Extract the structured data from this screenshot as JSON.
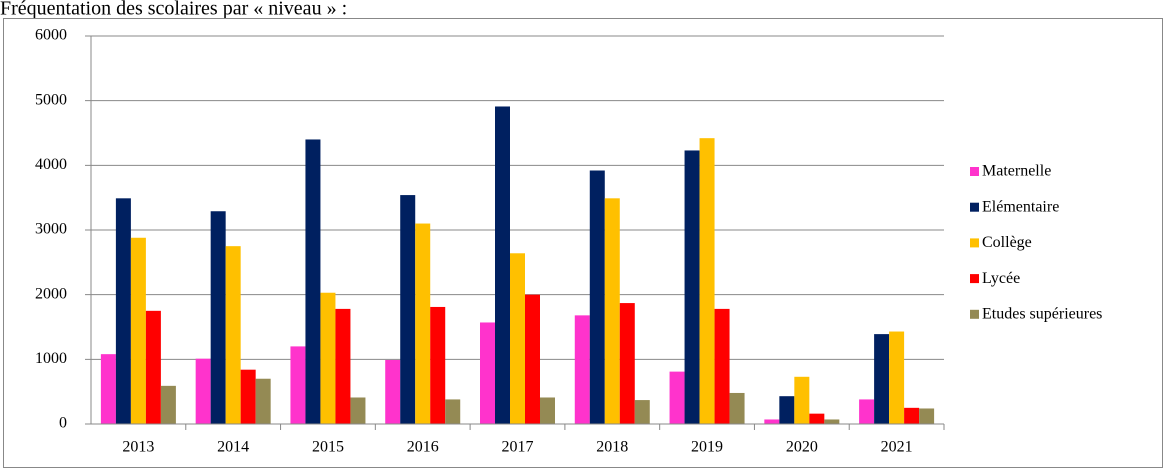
{
  "chart_data": {
    "type": "bar",
    "title": "Fréquentation des scolaires par « niveau » :",
    "categories": [
      "2013",
      "2014",
      "2015",
      "2016",
      "2017",
      "2018",
      "2019",
      "2020",
      "2021"
    ],
    "series": [
      {
        "name": "Maternelle",
        "color": "#ff33cc",
        "values": [
          1080,
          1010,
          1200,
          990,
          1570,
          1680,
          810,
          70,
          380
        ]
      },
      {
        "name": "Elémentaire",
        "color": "#002060",
        "values": [
          3490,
          3290,
          4400,
          3540,
          4910,
          3920,
          4230,
          430,
          1390
        ]
      },
      {
        "name": "Collège",
        "color": "#ffc000",
        "values": [
          2880,
          2750,
          2030,
          3100,
          2640,
          3490,
          4420,
          730,
          1430
        ]
      },
      {
        "name": "Lycée",
        "color": "#ff0000",
        "values": [
          1750,
          840,
          1780,
          1810,
          2000,
          1870,
          1780,
          160,
          250
        ]
      },
      {
        "name": "Etudes supérieures",
        "color": "#948a54",
        "values": [
          590,
          700,
          410,
          380,
          410,
          370,
          480,
          70,
          240
        ]
      }
    ],
    "ylim": [
      0,
      6000
    ],
    "yticks": [
      0,
      1000,
      2000,
      3000,
      4000,
      5000,
      6000
    ],
    "grid": true,
    "legend": "right"
  }
}
